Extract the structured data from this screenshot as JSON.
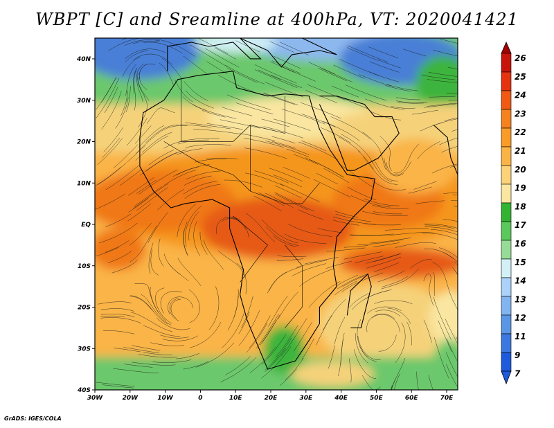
{
  "title": "WBPT [C] and Sreamline at 400hPa, VT: 2020041421",
  "credit": "GrADS: IGES/COLA",
  "map": {
    "lon_ticks": [
      "30W",
      "20W",
      "10W",
      "0",
      "10E",
      "20E",
      "30E",
      "40E",
      "50E",
      "60E",
      "70E"
    ],
    "lat_ticks": [
      "40N",
      "30N",
      "20N",
      "10N",
      "EQ",
      "10S",
      "20S",
      "30S",
      "40S"
    ],
    "lon_range": [
      -30,
      75
    ],
    "lat_range": [
      -40,
      45
    ]
  },
  "colorbar": {
    "labels": [
      "26",
      "25",
      "24",
      "23",
      "22",
      "21",
      "20",
      "19",
      "18",
      "17",
      "16",
      "15",
      "14",
      "13",
      "12",
      "11",
      "9",
      "7"
    ],
    "colors": [
      "#a50000",
      "#c8140a",
      "#e6320f",
      "#f05a14",
      "#f5821e",
      "#fa9b28",
      "#fab446",
      "#fcd278",
      "#fae6a0",
      "#32b432",
      "#5ac85a",
      "#96dc96",
      "#d2f0f5",
      "#aad2fa",
      "#82b4f0",
      "#5a96e6",
      "#3c78e1",
      "#1e5adc"
    ]
  },
  "palette": {
    "deep_blue": "#4a7fd6",
    "blue": "#8db8ee",
    "green_dark": "#3cb43c",
    "green": "#6cc86c",
    "yellow": "#fae6a0",
    "tan": "#f5d27a",
    "orange_light": "#fab446",
    "orange": "#f5961e",
    "orange_dark": "#f07814",
    "red_orange": "#e65a14"
  }
}
